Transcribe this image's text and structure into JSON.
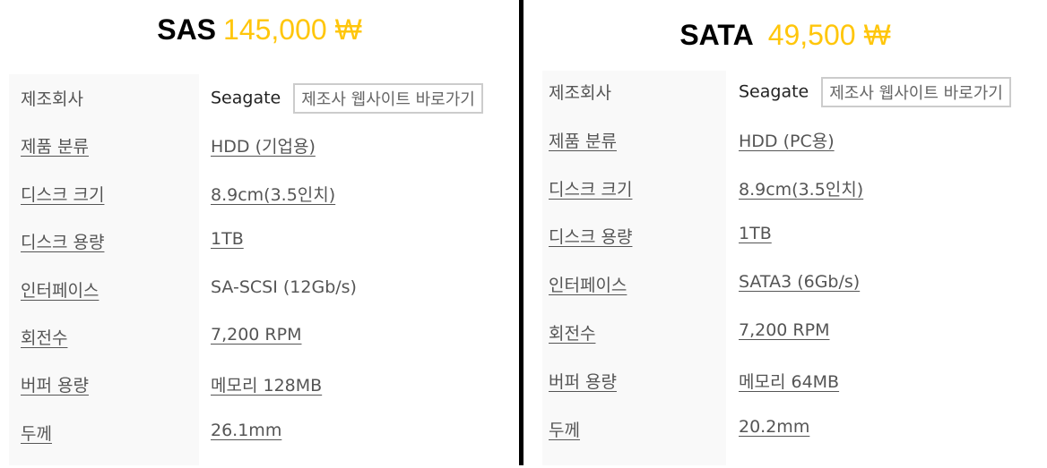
{
  "panels": [
    {
      "name": "SAS",
      "price": "145,000 ₩",
      "rows": [
        {
          "label": "제조회사",
          "value": "Seagate",
          "button": "제조사 웹사이트 바로가기"
        },
        {
          "label": "제품 분류",
          "value": "HDD (기업용)"
        },
        {
          "label": "디스크 크기",
          "value": "8.9cm(3.5인치)"
        },
        {
          "label": "디스크 용량",
          "value": "1TB"
        },
        {
          "label": "인터페이스",
          "value": "SA-SCSI (12Gb/s)"
        },
        {
          "label": "회전수",
          "value": "7,200 RPM"
        },
        {
          "label": "버퍼 용량",
          "value": "메모리 128MB"
        },
        {
          "label": "두께",
          "value": "26.1mm"
        }
      ]
    },
    {
      "name": "SATA",
      "price": "49,500 ₩",
      "rows": [
        {
          "label": "제조회사",
          "value": "Seagate",
          "button": "제조사 웹사이트 바로가기"
        },
        {
          "label": "제품 분류",
          "value": "HDD (PC용)"
        },
        {
          "label": "디스크 크기",
          "value": "8.9cm(3.5인치)"
        },
        {
          "label": "디스크 용량",
          "value": "1TB"
        },
        {
          "label": "인터페이스",
          "value": "SATA3 (6Gb/s)"
        },
        {
          "label": "회전수",
          "value": "7,200 RPM"
        },
        {
          "label": "버퍼 용량",
          "value": "메모리 64MB"
        },
        {
          "label": "두께",
          "value": "20.2mm"
        }
      ]
    }
  ],
  "colors": {
    "price": "#ffc60b",
    "divider": "#000000",
    "label_bg": "#f9f9f9"
  }
}
